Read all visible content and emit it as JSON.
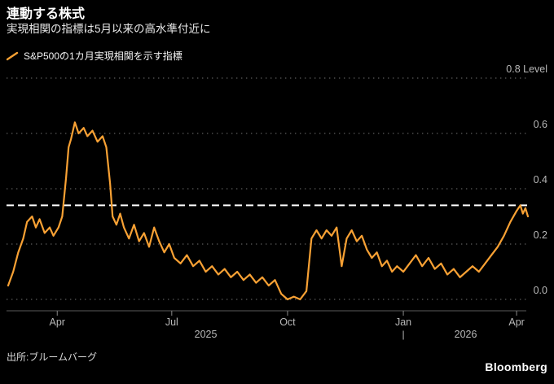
{
  "header": {
    "title": "連動する株式",
    "subtitle": "実現相関の指標は5月以来の高水準付近に"
  },
  "legend": {
    "label": "S&P500の1カ月実現相関を示す指標"
  },
  "footer": {
    "source": "出所:ブルームバーグ",
    "logo": "Bloomberg"
  },
  "chart_data": {
    "type": "line",
    "title": "連動する株式",
    "subtitle": "実現相関の指標は5月以来の高水準付近に",
    "series_name": "S&P500の1カ月実現相関を示す指標",
    "ylim": [
      0,
      0.8
    ],
    "grid": true,
    "legend_position": "top-left",
    "colors": {
      "background": "#000000",
      "line": "#F8A134",
      "grid": "#4d4d4d",
      "axis_text": "#b8b8b8",
      "axis_line": "#5a5a5a",
      "reference": "#ffffff"
    },
    "y_ticks": [
      {
        "value": 0.0,
        "label": "0.0"
      },
      {
        "value": 0.2,
        "label": "0.2"
      },
      {
        "value": 0.4,
        "label": "0.4"
      },
      {
        "value": 0.6,
        "label": "0.6"
      },
      {
        "value": 0.8,
        "label": "0.8 Level"
      }
    ],
    "x_ticks": [
      {
        "date": "2025-04-01",
        "label": "Apr"
      },
      {
        "date": "2025-07-01",
        "label": "Jul"
      },
      {
        "date": "2025-10-01",
        "label": "Oct"
      },
      {
        "date": "2026-01-01",
        "label": "Jan"
      },
      {
        "date": "2026-04-01",
        "label": "Apr"
      }
    ],
    "years": [
      "2025",
      "2026"
    ],
    "year_separator_date": "2026-01-01",
    "year_separator_glyph": "|",
    "reference_line": {
      "value": 0.34,
      "style": "dashed",
      "color": "#ffffff"
    },
    "points": [
      [
        "2025-02-21",
        0.05
      ],
      [
        "2025-02-25",
        0.1
      ],
      [
        "2025-03-01",
        0.17
      ],
      [
        "2025-03-05",
        0.22
      ],
      [
        "2025-03-08",
        0.28
      ],
      [
        "2025-03-12",
        0.3
      ],
      [
        "2025-03-15",
        0.26
      ],
      [
        "2025-03-18",
        0.29
      ],
      [
        "2025-03-22",
        0.24
      ],
      [
        "2025-03-26",
        0.26
      ],
      [
        "2025-03-29",
        0.23
      ],
      [
        "2025-04-02",
        0.26
      ],
      [
        "2025-04-05",
        0.3
      ],
      [
        "2025-04-08",
        0.44
      ],
      [
        "2025-04-10",
        0.55
      ],
      [
        "2025-04-12",
        0.58
      ],
      [
        "2025-04-15",
        0.64
      ],
      [
        "2025-04-18",
        0.6
      ],
      [
        "2025-04-22",
        0.62
      ],
      [
        "2025-04-25",
        0.59
      ],
      [
        "2025-04-29",
        0.61
      ],
      [
        "2025-05-03",
        0.57
      ],
      [
        "2025-05-07",
        0.59
      ],
      [
        "2025-05-10",
        0.55
      ],
      [
        "2025-05-13",
        0.42
      ],
      [
        "2025-05-15",
        0.3
      ],
      [
        "2025-05-18",
        0.27
      ],
      [
        "2025-05-21",
        0.31
      ],
      [
        "2025-05-24",
        0.26
      ],
      [
        "2025-05-28",
        0.22
      ],
      [
        "2025-06-01",
        0.27
      ],
      [
        "2025-06-05",
        0.21
      ],
      [
        "2025-06-09",
        0.24
      ],
      [
        "2025-06-13",
        0.19
      ],
      [
        "2025-06-17",
        0.26
      ],
      [
        "2025-06-21",
        0.21
      ],
      [
        "2025-06-25",
        0.17
      ],
      [
        "2025-06-29",
        0.2
      ],
      [
        "2025-07-03",
        0.15
      ],
      [
        "2025-07-08",
        0.13
      ],
      [
        "2025-07-13",
        0.16
      ],
      [
        "2025-07-18",
        0.12
      ],
      [
        "2025-07-23",
        0.14
      ],
      [
        "2025-07-28",
        0.1
      ],
      [
        "2025-08-02",
        0.12
      ],
      [
        "2025-08-07",
        0.09
      ],
      [
        "2025-08-12",
        0.11
      ],
      [
        "2025-08-17",
        0.08
      ],
      [
        "2025-08-22",
        0.1
      ],
      [
        "2025-08-27",
        0.07
      ],
      [
        "2025-09-01",
        0.09
      ],
      [
        "2025-09-06",
        0.06
      ],
      [
        "2025-09-11",
        0.08
      ],
      [
        "2025-09-16",
        0.05
      ],
      [
        "2025-09-21",
        0.07
      ],
      [
        "2025-09-26",
        0.02
      ],
      [
        "2025-10-01",
        0.0
      ],
      [
        "2025-10-06",
        0.01
      ],
      [
        "2025-10-11",
        0.0
      ],
      [
        "2025-10-16",
        0.03
      ],
      [
        "2025-10-20",
        0.22
      ],
      [
        "2025-10-24",
        0.25
      ],
      [
        "2025-10-28",
        0.22
      ],
      [
        "2025-11-01",
        0.25
      ],
      [
        "2025-11-05",
        0.23
      ],
      [
        "2025-11-09",
        0.26
      ],
      [
        "2025-11-13",
        0.12
      ],
      [
        "2025-11-17",
        0.22
      ],
      [
        "2025-11-21",
        0.25
      ],
      [
        "2025-11-25",
        0.21
      ],
      [
        "2025-11-29",
        0.23
      ],
      [
        "2025-12-03",
        0.18
      ],
      [
        "2025-12-07",
        0.15
      ],
      [
        "2025-12-11",
        0.17
      ],
      [
        "2025-12-15",
        0.12
      ],
      [
        "2025-12-19",
        0.14
      ],
      [
        "2025-12-23",
        0.1
      ],
      [
        "2025-12-27",
        0.12
      ],
      [
        "2026-01-01",
        0.1
      ],
      [
        "2026-01-06",
        0.13
      ],
      [
        "2026-01-11",
        0.16
      ],
      [
        "2026-01-16",
        0.12
      ],
      [
        "2026-01-21",
        0.15
      ],
      [
        "2026-01-26",
        0.11
      ],
      [
        "2026-01-31",
        0.13
      ],
      [
        "2026-02-05",
        0.09
      ],
      [
        "2026-02-10",
        0.11
      ],
      [
        "2026-02-15",
        0.08
      ],
      [
        "2026-02-20",
        0.1
      ],
      [
        "2026-02-25",
        0.12
      ],
      [
        "2026-03-02",
        0.1
      ],
      [
        "2026-03-07",
        0.13
      ],
      [
        "2026-03-12",
        0.16
      ],
      [
        "2026-03-17",
        0.19
      ],
      [
        "2026-03-22",
        0.23
      ],
      [
        "2026-03-27",
        0.28
      ],
      [
        "2026-04-01",
        0.32
      ],
      [
        "2026-04-04",
        0.34
      ],
      [
        "2026-04-06",
        0.31
      ],
      [
        "2026-04-08",
        0.33
      ],
      [
        "2026-04-10",
        0.3
      ]
    ]
  }
}
